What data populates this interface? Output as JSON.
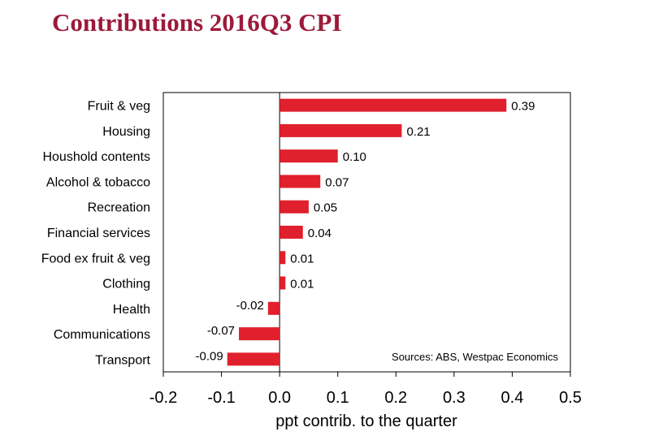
{
  "chart_data": {
    "type": "bar",
    "orientation": "horizontal",
    "title": "Contributions 2016Q3 CPI",
    "xlabel": "ppt contrib. to the quarter",
    "xlim": [
      -0.2,
      0.5
    ],
    "xticks": [
      "-0.2",
      "-0.1",
      "0.0",
      "0.1",
      "0.2",
      "0.3",
      "0.4",
      "0.5"
    ],
    "categories": [
      "Fruit & veg",
      "Housing",
      "Houshold contents",
      "Alcohol & tobacco",
      "Recreation",
      "Financial services",
      "Food ex fruit & veg",
      "Clothing",
      "Health",
      "Communications",
      "Transport"
    ],
    "values": [
      0.39,
      0.21,
      0.1,
      0.07,
      0.05,
      0.04,
      0.01,
      0.01,
      -0.02,
      -0.07,
      -0.09
    ],
    "value_labels": [
      "0.39",
      "0.21",
      "0.10",
      "0.07",
      "0.05",
      "0.04",
      "0.01",
      "0.01",
      "-0.02",
      "-0.07",
      "-0.09"
    ],
    "annotation": "Sources: ABS, Westpac Economics",
    "bar_color": "#e0202c",
    "grid": false
  }
}
